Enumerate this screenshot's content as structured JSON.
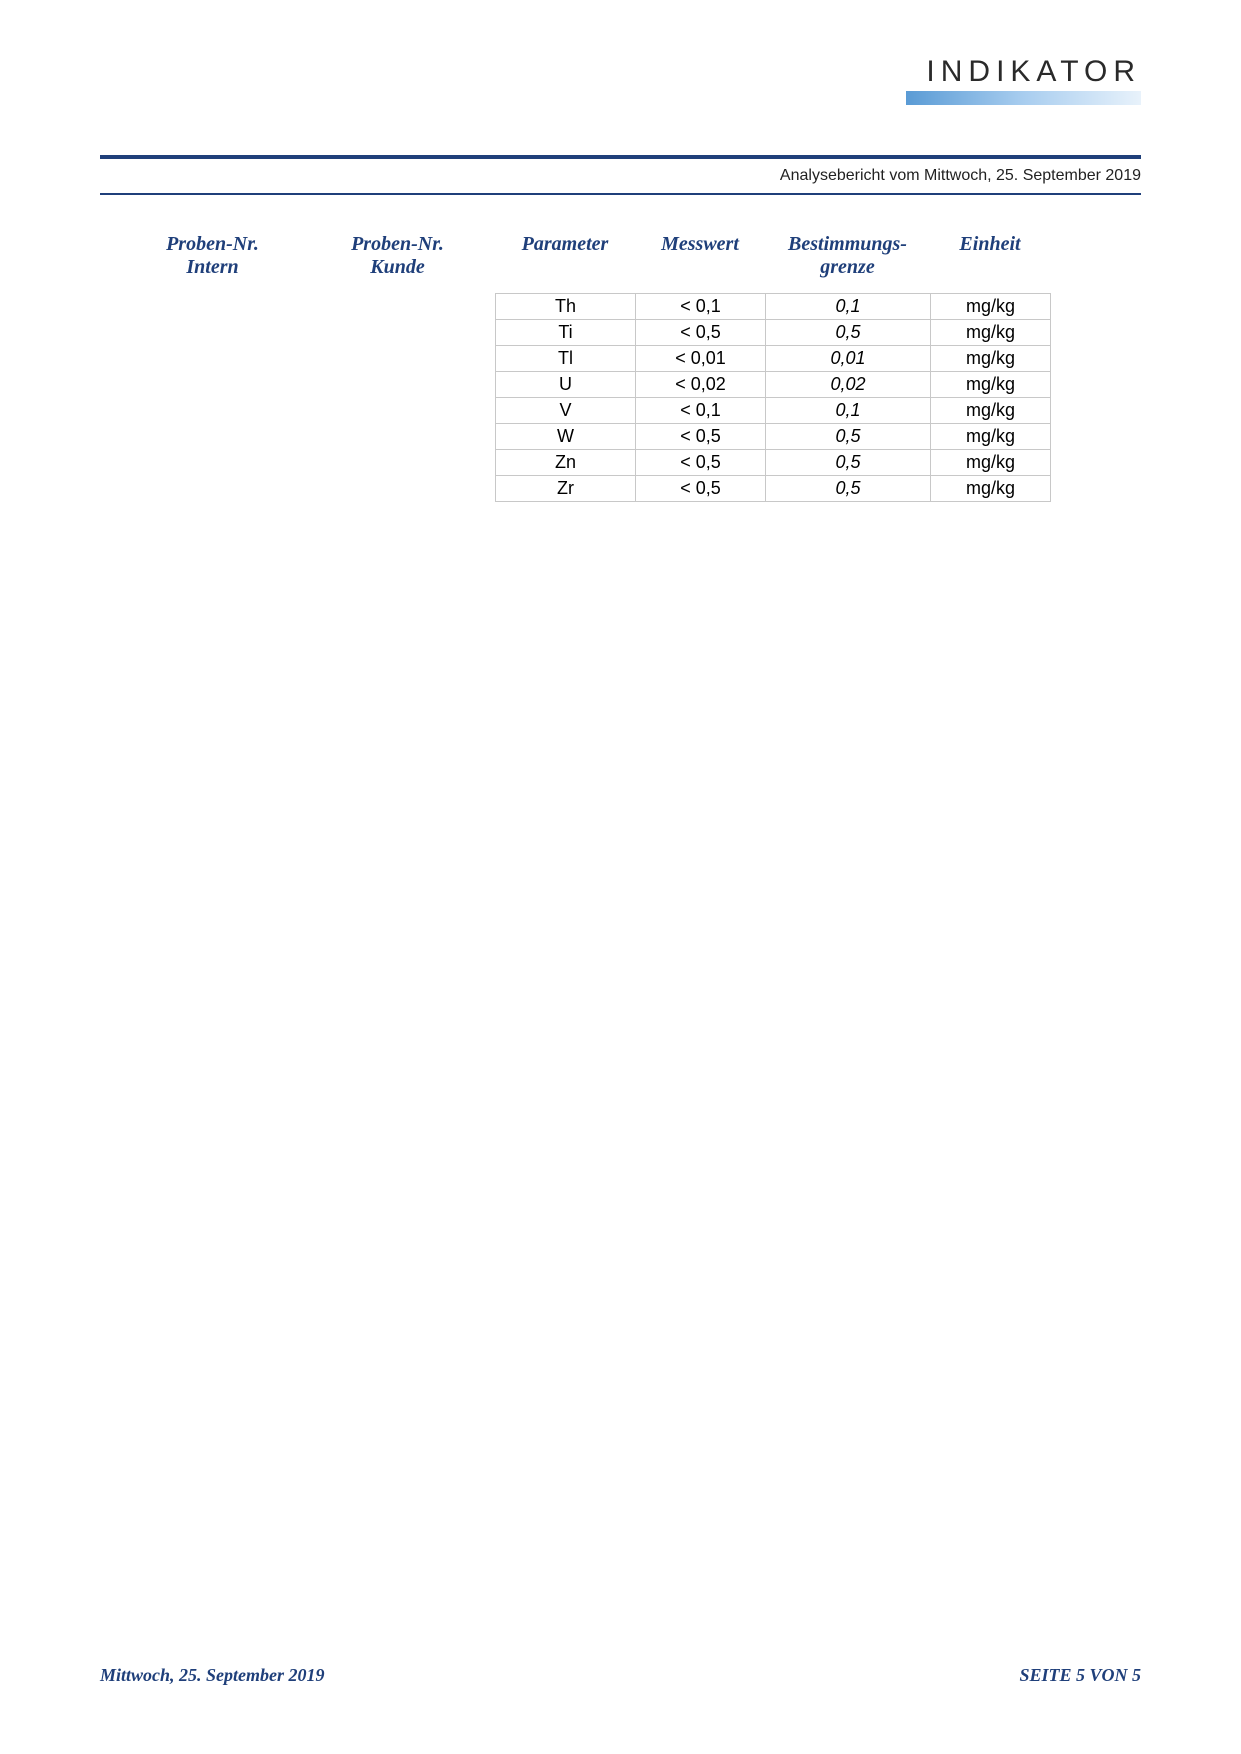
{
  "logo": {
    "text": "INDIKATOR",
    "gradient_from": "#5a9bd5",
    "gradient_mid": "#a8cdef",
    "gradient_to": "#e8f2fb"
  },
  "colors": {
    "divider": "#1f3f7a",
    "header_text": "#1f3f7a",
    "cell_border": "#c8c8c8",
    "background": "#ffffff"
  },
  "subheader": "Analysebericht vom Mittwoch, 25. September 2019",
  "columns": {
    "intern_l1": "Proben-Nr.",
    "intern_l2": "Intern",
    "kunde_l1": "Proben-Nr.",
    "kunde_l2": "Kunde",
    "parameter": "Parameter",
    "messwert": "Messwert",
    "grenze_l1": "Bestimmungs-",
    "grenze_l2": "grenze",
    "einheit": "Einheit"
  },
  "rows": [
    {
      "param": "Th",
      "messwert": "< 0,1",
      "grenze": "0,1",
      "einheit": "mg/kg"
    },
    {
      "param": "Ti",
      "messwert": "< 0,5",
      "grenze": "0,5",
      "einheit": "mg/kg"
    },
    {
      "param": "Tl",
      "messwert": "< 0,01",
      "grenze": "0,01",
      "einheit": "mg/kg"
    },
    {
      "param": "U",
      "messwert": "< 0,02",
      "grenze": "0,02",
      "einheit": "mg/kg"
    },
    {
      "param": "V",
      "messwert": "< 0,1",
      "grenze": "0,1",
      "einheit": "mg/kg"
    },
    {
      "param": "W",
      "messwert": "< 0,5",
      "grenze": "0,5",
      "einheit": "mg/kg"
    },
    {
      "param": "Zn",
      "messwert": "< 0,5",
      "grenze": "0,5",
      "einheit": "mg/kg"
    },
    {
      "param": "Zr",
      "messwert": "< 0,5",
      "grenze": "0,5",
      "einheit": "mg/kg"
    }
  ],
  "footer": {
    "date": "Mittwoch, 25. September 2019",
    "page": "SEITE 5 VON 5"
  }
}
